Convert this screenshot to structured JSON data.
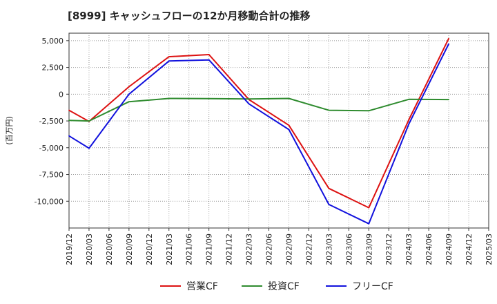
{
  "chart_data": {
    "type": "line",
    "title": "[8999]  キャッシュフローの12か月移動合計の推移",
    "ylabel": "(百万円)",
    "xlabel": "",
    "ylim": [
      -12500,
      5700
    ],
    "yticks": [
      5000,
      2500,
      0,
      -2500,
      -5000,
      -7500,
      -10000
    ],
    "ytick_labels": [
      "5,000",
      "2,500",
      "0",
      "-2,500",
      "-5,000",
      "-7,500",
      "-10,000"
    ],
    "categories": [
      "2019/12",
      "2020/03",
      "2020/06",
      "2020/09",
      "2020/12",
      "2021/03",
      "2021/06",
      "2021/09",
      "2021/12",
      "2022/03",
      "2022/06",
      "2022/09",
      "2022/12",
      "2023/03",
      "2023/06",
      "2023/09",
      "2023/12",
      "2024/03",
      "2024/06",
      "2024/09",
      "2024/12",
      "2025/03"
    ],
    "series": [
      {
        "name": "営業CF",
        "color": "#dd1111",
        "values": [
          -1500,
          -2550,
          null,
          700,
          null,
          3500,
          null,
          3700,
          null,
          -500,
          null,
          -2900,
          null,
          -8800,
          null,
          -10600,
          null,
          -2400,
          null,
          5200,
          null,
          null
        ]
      },
      {
        "name": "投資CF",
        "color": "#2e8b2e",
        "values": [
          -2450,
          -2500,
          null,
          -700,
          null,
          -400,
          null,
          -420,
          null,
          -450,
          null,
          -400,
          null,
          -1500,
          null,
          -1550,
          null,
          -480,
          null,
          -500,
          null,
          null
        ]
      },
      {
        "name": "フリーCF",
        "color": "#1111dd",
        "values": [
          -3900,
          -5050,
          null,
          0,
          null,
          3100,
          null,
          3200,
          null,
          -900,
          null,
          -3300,
          null,
          -10300,
          null,
          -12100,
          null,
          -2800,
          null,
          4700,
          null,
          null
        ]
      }
    ],
    "legend_position": "bottom",
    "grid": true
  }
}
